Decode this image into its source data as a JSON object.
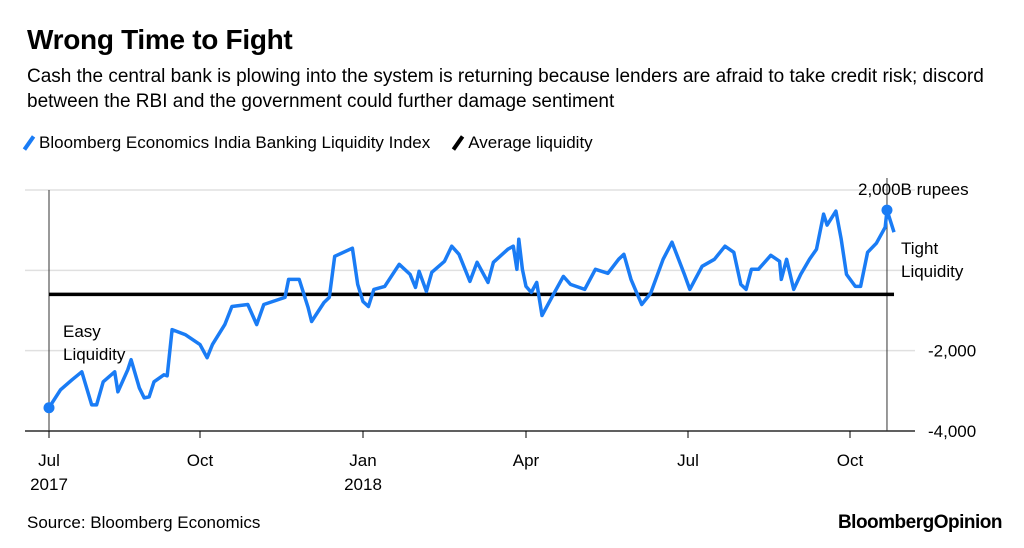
{
  "title": "Wrong Time to Fight",
  "subtitle": "Cash the central bank is plowing into the system is returning because lenders are afraid to take credit risk; discord between the RBI and the government could further damage sentiment",
  "source": "Source: Bloomberg Economics",
  "logo": "BloombergOpinion",
  "colors": {
    "series": "#1a7cf5",
    "average": "#000000",
    "grid": "#e0e0e0"
  },
  "chart_data": {
    "type": "line",
    "title": "Wrong Time to Fight",
    "ylabel": "",
    "xlabel": "",
    "ylim": [
      -4000,
      2000
    ],
    "y_axis_position": "right",
    "y_ticks": [
      {
        "value": 2000,
        "label": "2,000B rupees"
      },
      {
        "value": 0,
        "label": ""
      },
      {
        "value": -2000,
        "label": "-2,000"
      },
      {
        "value": -4000,
        "label": "-4,000"
      }
    ],
    "x_ticks": [
      {
        "date": "2017-07-01",
        "label": "Jul",
        "year": "2017"
      },
      {
        "date": "2017-10-01",
        "label": "Oct",
        "year": ""
      },
      {
        "date": "2018-01-01",
        "label": "Jan",
        "year": "2018"
      },
      {
        "date": "2018-04-01",
        "label": "Apr",
        "year": ""
      },
      {
        "date": "2018-07-01",
        "label": "Jul",
        "year": ""
      },
      {
        "date": "2018-10-01",
        "label": "Oct",
        "year": ""
      }
    ],
    "grid": true,
    "legend": "top-left",
    "annotations": {
      "easy_1": "Easy",
      "easy_2": "Liquidity",
      "tight_1": "Tight",
      "tight_2": "Liquidity"
    },
    "series": [
      {
        "name": "Bloomberg Economics India Banking Liquidity Index",
        "points": [
          [
            "2017-07-01",
            -3420
          ],
          [
            "2017-07-08",
            -2975
          ],
          [
            "2017-07-15",
            -2725
          ],
          [
            "2017-07-21",
            -2525
          ],
          [
            "2017-07-27",
            -3350
          ],
          [
            "2017-07-30",
            -3350
          ],
          [
            "2017-08-03",
            -2775
          ],
          [
            "2017-08-10",
            -2525
          ],
          [
            "2017-08-12",
            -3025
          ],
          [
            "2017-08-18",
            -2475
          ],
          [
            "2017-08-20",
            -2225
          ],
          [
            "2017-08-25",
            -2925
          ],
          [
            "2017-08-28",
            -3175
          ],
          [
            "2017-08-31",
            -3150
          ],
          [
            "2017-09-03",
            -2775
          ],
          [
            "2017-09-09",
            -2600
          ],
          [
            "2017-09-11",
            -2625
          ],
          [
            "2017-09-14",
            -1475
          ],
          [
            "2017-09-22",
            -1600
          ],
          [
            "2017-10-01",
            -1850
          ],
          [
            "2017-10-05",
            -2175
          ],
          [
            "2017-10-08",
            -1850
          ],
          [
            "2017-10-15",
            -1350
          ],
          [
            "2017-10-19",
            -900
          ],
          [
            "2017-10-28",
            -850
          ],
          [
            "2017-11-02",
            -1350
          ],
          [
            "2017-11-06",
            -850
          ],
          [
            "2017-11-18",
            -675
          ],
          [
            "2017-11-20",
            -225
          ],
          [
            "2017-11-26",
            -225
          ],
          [
            "2017-12-01",
            -925
          ],
          [
            "2017-12-03",
            -1275
          ],
          [
            "2017-12-10",
            -800
          ],
          [
            "2017-12-13",
            -675
          ],
          [
            "2017-12-16",
            350
          ],
          [
            "2017-12-26",
            550
          ],
          [
            "2017-12-29",
            -350
          ],
          [
            "2018-01-01",
            -775
          ],
          [
            "2018-01-04",
            -900
          ],
          [
            "2018-01-07",
            -475
          ],
          [
            "2018-01-13",
            -400
          ],
          [
            "2018-01-21",
            150
          ],
          [
            "2018-01-27",
            -100
          ],
          [
            "2018-01-30",
            -425
          ],
          [
            "2018-02-01",
            -25
          ],
          [
            "2018-02-05",
            -525
          ],
          [
            "2018-02-08",
            -50
          ],
          [
            "2018-02-15",
            225
          ],
          [
            "2018-02-19",
            600
          ],
          [
            "2018-02-23",
            400
          ],
          [
            "2018-03-01",
            -275
          ],
          [
            "2018-03-05",
            200
          ],
          [
            "2018-03-11",
            -300
          ],
          [
            "2018-03-14",
            200
          ],
          [
            "2018-03-22",
            525
          ],
          [
            "2018-03-25",
            600
          ],
          [
            "2018-03-27",
            25
          ],
          [
            "2018-03-28",
            775
          ],
          [
            "2018-03-30",
            25
          ],
          [
            "2018-04-01",
            -400
          ],
          [
            "2018-04-04",
            -550
          ],
          [
            "2018-04-07",
            -300
          ],
          [
            "2018-04-10",
            -1125
          ],
          [
            "2018-04-17",
            -550
          ],
          [
            "2018-04-22",
            -150
          ],
          [
            "2018-04-26",
            -350
          ],
          [
            "2018-05-04",
            -475
          ],
          [
            "2018-05-10",
            25
          ],
          [
            "2018-05-17",
            -75
          ],
          [
            "2018-05-23",
            275
          ],
          [
            "2018-05-26",
            400
          ],
          [
            "2018-05-30",
            -225
          ],
          [
            "2018-06-05",
            -850
          ],
          [
            "2018-06-10",
            -575
          ],
          [
            "2018-06-17",
            275
          ],
          [
            "2018-06-22",
            700
          ],
          [
            "2018-06-29",
            -100
          ],
          [
            "2018-07-02",
            -475
          ],
          [
            "2018-07-09",
            100
          ],
          [
            "2018-07-16",
            275
          ],
          [
            "2018-07-22",
            600
          ],
          [
            "2018-07-27",
            450
          ],
          [
            "2018-07-31",
            -350
          ],
          [
            "2018-08-03",
            -475
          ],
          [
            "2018-08-06",
            25
          ],
          [
            "2018-08-10",
            25
          ],
          [
            "2018-08-17",
            375
          ],
          [
            "2018-08-22",
            225
          ],
          [
            "2018-08-23",
            -225
          ],
          [
            "2018-08-26",
            275
          ],
          [
            "2018-08-30",
            -475
          ],
          [
            "2018-09-03",
            -100
          ],
          [
            "2018-09-08",
            275
          ],
          [
            "2018-09-12",
            525
          ],
          [
            "2018-09-16",
            1400
          ],
          [
            "2018-09-18",
            1125
          ],
          [
            "2018-09-23",
            1475
          ],
          [
            "2018-09-26",
            775
          ],
          [
            "2018-09-29",
            -100
          ],
          [
            "2018-10-04",
            -400
          ],
          [
            "2018-10-07",
            -400
          ],
          [
            "2018-10-11",
            450
          ],
          [
            "2018-10-16",
            675
          ],
          [
            "2018-10-21",
            1075
          ],
          [
            "2018-10-22",
            1500
          ],
          [
            "2018-10-24",
            1225
          ],
          [
            "2018-10-26",
            950
          ]
        ]
      },
      {
        "name": "Average liquidity",
        "value": -600,
        "from": "2017-07-01",
        "to": "2018-10-26"
      }
    ]
  }
}
